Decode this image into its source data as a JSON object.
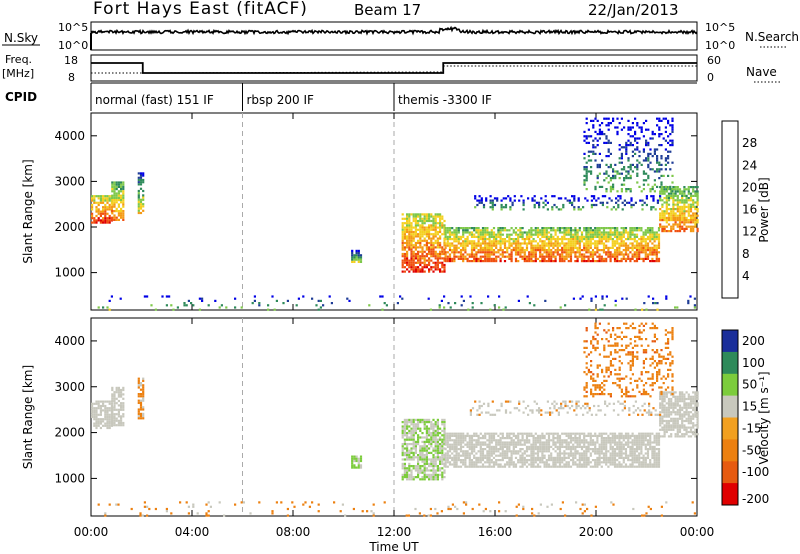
{
  "header": {
    "title": "Fort Hays East (fitACF)",
    "beam": "Beam 17",
    "date": "22/Jan/2013"
  },
  "noise_panel": {
    "left_label": "N.Sky",
    "right_label": "N.Search",
    "left_ticks": [
      "10^5",
      "10^0"
    ],
    "right_ticks": [
      "10^5",
      "10^0"
    ]
  },
  "freq_panel": {
    "left_label_1": "Freq.",
    "left_label_2": "[MHz]",
    "right_label": "Nave",
    "left_ticks": [
      "18",
      "8"
    ],
    "right_ticks": [
      "60",
      "0"
    ]
  },
  "cpid_panel": {
    "label": "CPID",
    "segments": [
      {
        "start_hour": 0,
        "end_hour": 6,
        "label": "normal (fast) 151 IF"
      },
      {
        "start_hour": 6,
        "end_hour": 12,
        "label": "rbsp 200 IF"
      },
      {
        "start_hour": 12,
        "end_hour": 24,
        "label": "themis -3300 IF"
      }
    ]
  },
  "x_axis": {
    "label": "Time UT",
    "ticks": [
      "00:00",
      "04:00",
      "08:00",
      "12:00",
      "16:00",
      "20:00",
      "00:00"
    ],
    "range_hours": [
      0,
      24
    ]
  },
  "power_panel": {
    "ylabel": "Slant Range [km]",
    "yticks": [
      "1000",
      "2000",
      "3000",
      "4000"
    ],
    "colorbar_label": "Power [dB]",
    "colorbar_ticks": [
      "4",
      "8",
      "12",
      "16",
      "20",
      "24",
      "28"
    ]
  },
  "velocity_panel": {
    "ylabel": "Slant Range [km]",
    "yticks": [
      "1000",
      "2000",
      "3000",
      "4000"
    ],
    "colorbar_label": "Velocity [m s⁻¹]",
    "colorbar_ticks": [
      "200",
      "100",
      "50",
      "15",
      "-15",
      "-50",
      "-100",
      "-200"
    ]
  },
  "chart_data": {
    "type": "heatmap",
    "x_range_hours": [
      0,
      24
    ],
    "y_range_km": [
      180,
      4500
    ],
    "power_colors": [
      "#0000e6",
      "#1e3c96",
      "#2e8a5a",
      "#7ec84a",
      "#f4d020",
      "#f49a14",
      "#f05010",
      "#e00000"
    ],
    "velocity_colors": [
      "#1a2e9a",
      "#2e8a5a",
      "#7ccc3c",
      "#c8c8bd",
      "#f2a020",
      "#ec8010",
      "#e65a10",
      "#e00000"
    ],
    "scatter_regions": [
      {
        "start_hour": 0.0,
        "end_hour": 0.8,
        "min_range_km": 2100,
        "max_range_km": 2700,
        "power_db": 22,
        "velocity_ms": 0
      },
      {
        "start_hour": 0.8,
        "end_hour": 1.3,
        "min_range_km": 2150,
        "max_range_km": 3000,
        "power_db": 18,
        "velocity_ms": 0
      },
      {
        "start_hour": 1.85,
        "end_hour": 2.05,
        "min_range_km": 2300,
        "max_range_km": 3200,
        "power_db": 12,
        "velocity_ms": -40
      },
      {
        "start_hour": 10.3,
        "end_hour": 10.7,
        "min_range_km": 1250,
        "max_range_km": 1500,
        "power_db": 10,
        "velocity_ms": 40
      },
      {
        "start_hour": 12.3,
        "end_hour": 14.0,
        "min_range_km": 1000,
        "max_range_km": 2300,
        "power_db": 22,
        "velocity_ms": 30
      },
      {
        "start_hour": 14.0,
        "end_hour": 22.5,
        "min_range_km": 1250,
        "max_range_km": 2000,
        "power_db": 20,
        "velocity_ms": 0
      },
      {
        "start_hour": 22.5,
        "end_hour": 24.0,
        "min_range_km": 1900,
        "max_range_km": 2900,
        "power_db": 18,
        "velocity_ms": 0
      },
      {
        "start_hour": 15.0,
        "end_hour": 22.5,
        "min_range_km": 2400,
        "max_range_km": 2700,
        "power_db": 6,
        "velocity_ms": -20
      },
      {
        "start_hour": 19.5,
        "end_hour": 23.0,
        "min_range_km": 2800,
        "max_range_km": 4400,
        "power_db": 6,
        "velocity_ms": -60
      },
      {
        "start_hour": 0.0,
        "end_hour": 24.0,
        "min_range_km": 200,
        "max_range_km": 500,
        "power_db": 8,
        "velocity_ms": -40
      }
    ]
  }
}
